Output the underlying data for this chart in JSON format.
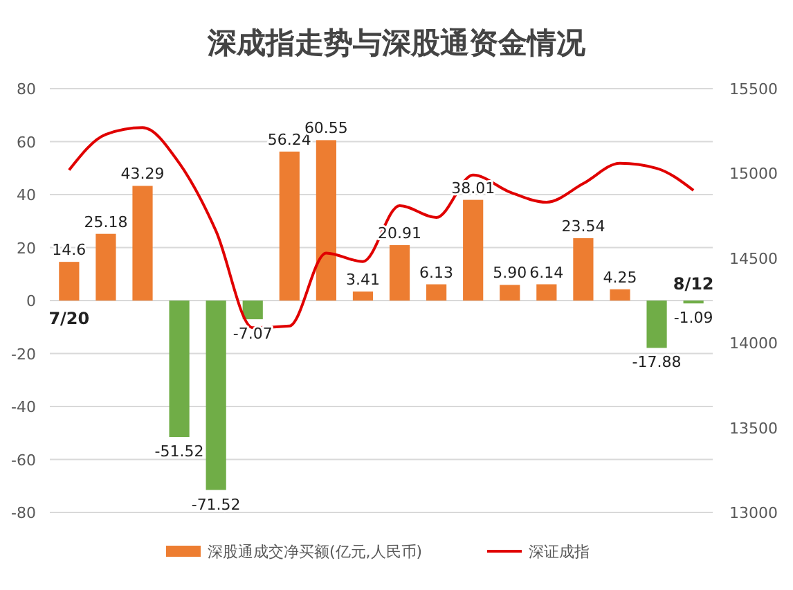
{
  "chart_data": {
    "type": "bar",
    "title": "深成指走势与深股通资金情况",
    "categories": [
      "7/20",
      null,
      null,
      null,
      null,
      null,
      null,
      null,
      null,
      null,
      null,
      null,
      null,
      null,
      null,
      null,
      null,
      "8/12"
    ],
    "series": [
      {
        "name": "深股通成交净买额(亿元,人民币)",
        "color": "#ed7d31",
        "colors": [
          "#ed7d31",
          "#ed7d31",
          "#ed7d31",
          "#70ad47",
          "#70ad47",
          "#70ad47",
          "#ed7d31",
          "#ed7d31",
          "#ed7d31",
          "#ed7d31",
          "#ed7d31",
          "#ed7d31",
          "#ed7d31",
          "#ed7d31",
          "#ed7d31",
          "#ed7d31",
          "#70ad47",
          "#70ad47"
        ],
        "values": [
          14.6,
          25.18,
          43.29,
          -51.52,
          -71.52,
          -7.07,
          56.24,
          60.55,
          3.41,
          20.91,
          6.13,
          38.01,
          5.9,
          6.14,
          23.54,
          4.25,
          -17.88,
          -1.09
        ],
        "value_labels": [
          "14.6",
          "25.18",
          "43.29",
          "-51.52",
          "-71.52",
          "-7.07",
          "56.24",
          "60.55",
          "3.41",
          "20.91",
          "6.13",
          "38.01",
          "5.90",
          "6.14",
          "23.54",
          "4.25",
          "-17.88",
          "-1.09"
        ]
      },
      {
        "name": "深证成指",
        "type": "line",
        "axis": "y2",
        "color": "#e00000",
        "values": [
          15020,
          15230,
          15270,
          15060,
          14660,
          14090,
          14100,
          14530,
          14480,
          14810,
          14740,
          14990,
          14890,
          14830,
          14940,
          15060,
          15030,
          14900
        ]
      }
    ],
    "ylim": [
      -80,
      80
    ],
    "yticks": [
      -80,
      -60,
      -40,
      -20,
      0,
      20,
      40,
      60,
      80
    ],
    "y2lim": [
      13000,
      15500
    ],
    "y2ticks": [
      13000,
      13500,
      14000,
      14500,
      15000,
      15500
    ],
    "grid": "y",
    "legend": "bottom",
    "line_style": "solid",
    "marker": "none"
  }
}
